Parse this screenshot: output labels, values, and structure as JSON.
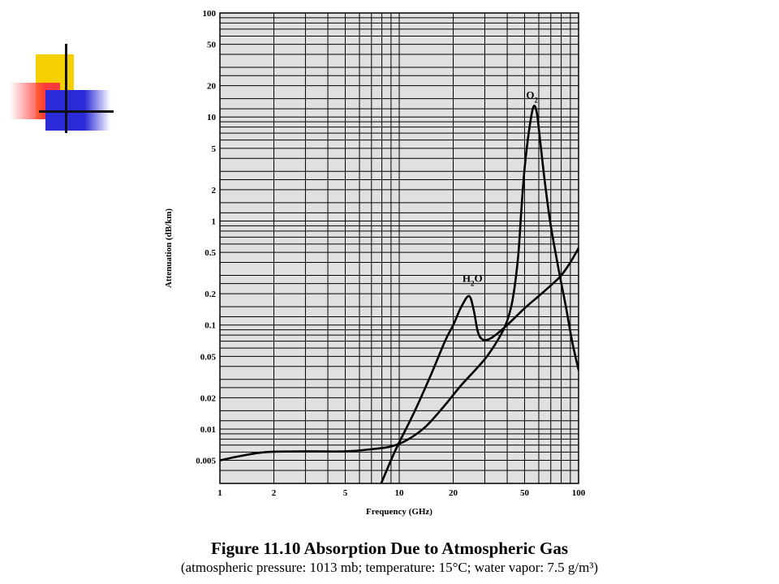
{
  "slide": {
    "figure_title": "Figure 11.10  Absorption Due to Atmospheric Gas",
    "figure_caption": "(atmospheric pressure: 1013 mb; temperature: 15°C; water vapor: 7.5 g/m³)"
  },
  "decoration": {
    "colors": {
      "yellow": "#f5d000",
      "red": "#ff3a3a",
      "blue": "#2a2ad8"
    }
  },
  "chart_data": {
    "type": "line",
    "title": "",
    "xlabel": "Frequency (GHz)",
    "ylabel": "Attenuation (dB/km)",
    "x_scale": "log",
    "y_scale": "log",
    "xlim": [
      1,
      100
    ],
    "ylim": [
      0.003,
      100
    ],
    "grid": true,
    "plot_background": "#e0e0e0",
    "x_ticks": [
      1,
      2,
      5,
      10,
      20,
      50,
      100
    ],
    "x_tick_labels": [
      "1",
      "2",
      "5",
      "10",
      "20",
      "50",
      "100"
    ],
    "y_ticks": [
      0.005,
      0.01,
      0.02,
      0.05,
      0.1,
      0.2,
      0.5,
      1,
      2,
      5,
      10,
      20,
      50,
      100
    ],
    "y_tick_labels": [
      "0.005",
      "0.01",
      "0.02",
      "0.05",
      "0.1",
      "0.2",
      "0.5",
      "1",
      "2",
      "5",
      "10",
      "20",
      "50",
      "100"
    ],
    "series": [
      {
        "name": "H2O",
        "label_html": "H<tspan baseline-shift=\"sub\" font-size=\"9\">2</tspan>O",
        "label_at": [
          22.5,
          0.26
        ],
        "points": [
          [
            7.8,
            0.0028
          ],
          [
            9.5,
            0.0062
          ],
          [
            12,
            0.014
          ],
          [
            15,
            0.033
          ],
          [
            18,
            0.07
          ],
          [
            20,
            0.1
          ],
          [
            22.2,
            0.15
          ],
          [
            24.5,
            0.19
          ],
          [
            26,
            0.14
          ],
          [
            27.5,
            0.085
          ],
          [
            29.5,
            0.072
          ],
          [
            33,
            0.076
          ],
          [
            40,
            0.1
          ],
          [
            50,
            0.145
          ],
          [
            60,
            0.19
          ],
          [
            70,
            0.24
          ],
          [
            80,
            0.3
          ],
          [
            90,
            0.4
          ],
          [
            100,
            0.55
          ]
        ]
      },
      {
        "name": "O2",
        "label_html": "O<tspan baseline-shift=\"sub\" font-size=\"9\">2</tspan>",
        "label_at": [
          51,
          15
        ],
        "points": [
          [
            1,
            0.005
          ],
          [
            1.3,
            0.0055
          ],
          [
            1.8,
            0.006
          ],
          [
            3,
            0.0061
          ],
          [
            5,
            0.0061
          ],
          [
            7,
            0.0064
          ],
          [
            9,
            0.0068
          ],
          [
            11,
            0.0078
          ],
          [
            14,
            0.0105
          ],
          [
            18,
            0.017
          ],
          [
            22,
            0.026
          ],
          [
            30,
            0.047
          ],
          [
            36,
            0.075
          ],
          [
            40,
            0.11
          ],
          [
            43,
            0.18
          ],
          [
            46,
            0.45
          ],
          [
            48,
            1.3
          ],
          [
            50,
            3.2
          ],
          [
            53,
            7.5
          ],
          [
            56,
            12.5
          ],
          [
            58.5,
            11
          ],
          [
            61,
            6
          ],
          [
            65,
            2.3
          ],
          [
            70,
            0.9
          ],
          [
            78,
            0.32
          ],
          [
            85,
            0.15
          ],
          [
            92,
            0.07
          ],
          [
            100,
            0.037
          ]
        ]
      }
    ]
  }
}
